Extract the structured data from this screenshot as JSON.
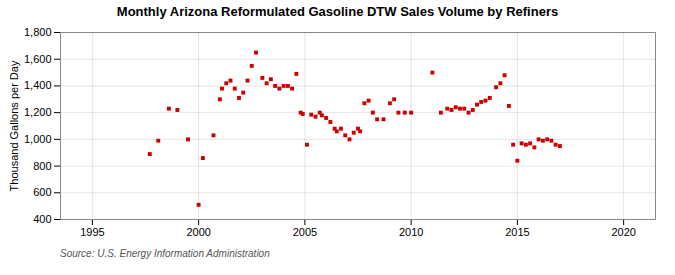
{
  "chart_data": {
    "type": "scatter",
    "title": "Monthly Arizona Reformulated Gasoline DTW Sales Volume by Refiners",
    "ylabel": "Thousand Gallons per Day",
    "source": "Source: U.S. Energy Information Administration",
    "color": "#cc0000",
    "marker": "square",
    "grid": true,
    "xlim": [
      1993.5,
      2021.5
    ],
    "ylim": [
      400,
      1800
    ],
    "xticks": [
      1995,
      2000,
      2005,
      2010,
      2015,
      2020
    ],
    "yticks": [
      400,
      600,
      800,
      {
        "value": 1000,
        "label": "1,000"
      },
      {
        "value": 1200,
        "label": "1,200"
      },
      {
        "value": 1400,
        "label": "1,400"
      },
      {
        "value": 1600,
        "label": "1,600"
      },
      {
        "value": 1800,
        "label": "1,800"
      }
    ],
    "x": [
      1997.7,
      1998.1,
      1998.6,
      1999.0,
      1999.5,
      2000.0,
      2000.2,
      2000.7,
      2001.0,
      2001.1,
      2001.3,
      2001.5,
      2001.7,
      2001.9,
      2002.1,
      2002.3,
      2002.5,
      2002.7,
      2003.0,
      2003.2,
      2003.4,
      2003.6,
      2003.8,
      2004.0,
      2004.2,
      2004.4,
      2004.6,
      2004.8,
      2004.9,
      2005.1,
      2005.3,
      2005.5,
      2005.7,
      2005.8,
      2006.0,
      2006.2,
      2006.4,
      2006.5,
      2006.7,
      2006.9,
      2007.1,
      2007.3,
      2007.5,
      2007.6,
      2007.8,
      2008.0,
      2008.2,
      2008.4,
      2008.7,
      2009.0,
      2009.2,
      2009.4,
      2009.7,
      2010.0,
      2011.0,
      2011.4,
      2011.7,
      2011.9,
      2012.1,
      2012.3,
      2012.5,
      2012.7,
      2012.9,
      2013.1,
      2013.3,
      2013.5,
      2013.7,
      2014.0,
      2014.2,
      2014.4,
      2014.6,
      2014.8,
      2015.0,
      2015.2,
      2015.4,
      2015.6,
      2015.8,
      2016.0,
      2016.2,
      2016.4,
      2016.6,
      2016.8,
      2017.0
    ],
    "values": [
      890,
      990,
      1230,
      1220,
      1000,
      510,
      860,
      1030,
      1300,
      1380,
      1420,
      1440,
      1380,
      1310,
      1350,
      1440,
      1550,
      1650,
      1460,
      1420,
      1450,
      1400,
      1380,
      1400,
      1400,
      1380,
      1490,
      1200,
      1190,
      960,
      1185,
      1170,
      1200,
      1180,
      1160,
      1130,
      1080,
      1060,
      1080,
      1030,
      1000,
      1050,
      1080,
      1060,
      1270,
      1290,
      1200,
      1150,
      1150,
      1270,
      1300,
      1200,
      1200,
      1200,
      1500,
      1200,
      1230,
      1220,
      1240,
      1230,
      1230,
      1200,
      1220,
      1260,
      1280,
      1290,
      1310,
      1390,
      1420,
      1480,
      1250,
      960,
      840,
      970,
      960,
      970,
      940,
      1000,
      990,
      1000,
      990,
      960,
      950
    ]
  }
}
